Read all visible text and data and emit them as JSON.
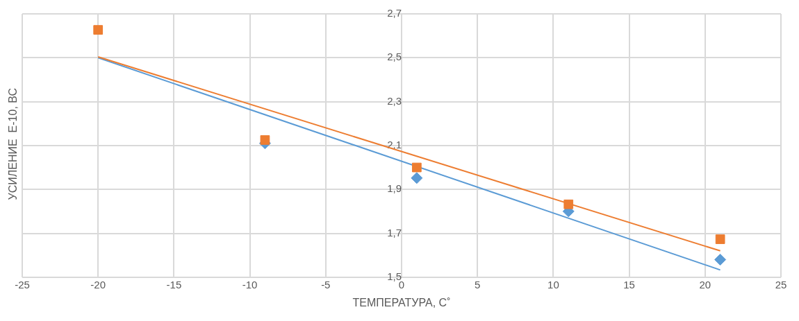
{
  "chart_data": {
    "type": "scatter",
    "xlabel": "ТЕМПЕРАТУРА, С˚",
    "ylabel": "УСИЛЕНИЕ  Е-10, ВС",
    "xlim": [
      -25,
      25
    ],
    "xticks": [
      -25,
      -20,
      -15,
      -10,
      -5,
      0,
      5,
      10,
      15,
      20,
      25
    ],
    "ylim": [
      1.5,
      2.7
    ],
    "yticks": [
      {
        "value": 1.5,
        "label": "1,5"
      },
      {
        "value": 1.7,
        "label": "1,7"
      },
      {
        "value": 1.9,
        "label": "1,9"
      },
      {
        "value": 2.1,
        "label": "2,1"
      },
      {
        "value": 2.3,
        "label": "2,3"
      },
      {
        "value": 2.5,
        "label": "2,5"
      },
      {
        "value": 2.7,
        "label": "2,7"
      }
    ],
    "grid": true,
    "legend": false,
    "series": [
      {
        "type": "line",
        "color": "#5b9bd5",
        "x": [
          -20,
          21
        ],
        "values": [
          2.5,
          1.533
        ]
      },
      {
        "type": "line",
        "color": "#ed7d31",
        "x": [
          -20,
          21
        ],
        "values": [
          2.504,
          1.62
        ]
      },
      {
        "type": "scatter",
        "marker": "diamond",
        "color": "#5b9bd5",
        "x": [
          -9,
          1,
          11,
          21
        ],
        "values": [
          2.11,
          1.952,
          1.8,
          1.58
        ]
      },
      {
        "type": "scatter",
        "marker": "square",
        "color": "#ed7d31",
        "x": [
          -20,
          -9,
          1,
          11,
          21
        ],
        "values": [
          2.627,
          2.125,
          2.0,
          1.832,
          1.673
        ]
      }
    ]
  }
}
